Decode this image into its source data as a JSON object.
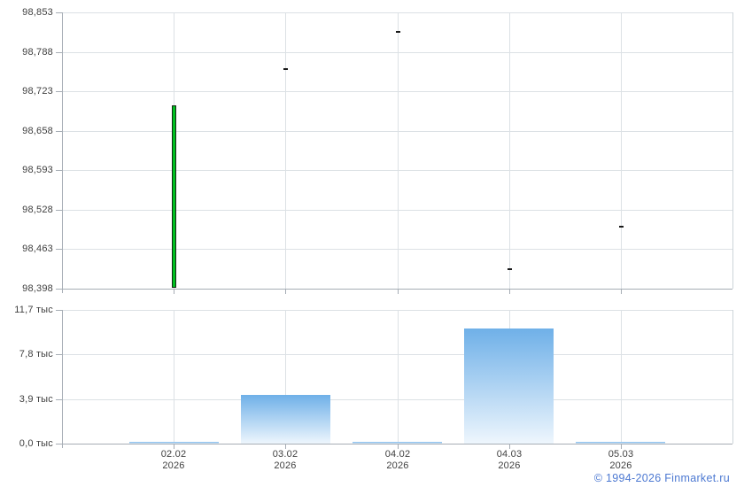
{
  "footer": {
    "copyright": "© 1994-2026 Finmarket.ru"
  },
  "colors": {
    "grid": "#dce1e5",
    "border": "#ccd4d9",
    "axis": "#a6adb5",
    "label_text": "#3f3f3f",
    "candle_up_fill": "#00c020",
    "candle_border": "#142814",
    "doji": "#1a1a1a",
    "bar_gradient_top": "#6fb0e8",
    "bar_gradient_bottom": "#eef6fd",
    "footer_link": "#4d79d2"
  },
  "x_axis": {
    "categories": [
      "02.02",
      "03.02",
      "04.02",
      "04.03",
      "05.03"
    ],
    "year_label": "2026"
  },
  "chart_data": [
    {
      "type": "candlestick",
      "panel": "price",
      "title": "",
      "x": [
        "02.02.2026",
        "03.02.2026",
        "04.02.2026",
        "04.03.2026",
        "05.03.2026"
      ],
      "candles": [
        {
          "open": 98400,
          "high": 98700,
          "low": 98400,
          "close": 98700,
          "direction": "up"
        },
        {
          "open": 98760,
          "high": 98760,
          "low": 98760,
          "close": 98760,
          "direction": "flat"
        },
        {
          "open": 98821,
          "high": 98821,
          "low": 98821,
          "close": 98821,
          "direction": "flat"
        },
        {
          "open": 98430,
          "high": 98430,
          "low": 98430,
          "close": 98430,
          "direction": "flat"
        },
        {
          "open": 98500,
          "high": 98500,
          "low": 98500,
          "close": 98500,
          "direction": "flat"
        }
      ],
      "ylim": [
        98398,
        98853
      ],
      "yticks": [
        {
          "value": 98853,
          "label": "98,853"
        },
        {
          "value": 98788,
          "label": "98,788"
        },
        {
          "value": 98723,
          "label": "98,723"
        },
        {
          "value": 98658,
          "label": "98,658"
        },
        {
          "value": 98593,
          "label": "98,593"
        },
        {
          "value": 98528,
          "label": "98,528"
        },
        {
          "value": 98463,
          "label": "98,463"
        },
        {
          "value": 98398,
          "label": "98,398"
        }
      ],
      "grid": true,
      "legend": false
    },
    {
      "type": "bar",
      "panel": "volume",
      "title": "",
      "x": [
        "02.02.2026",
        "03.02.2026",
        "04.02.2026",
        "04.03.2026",
        "05.03.2026"
      ],
      "values": [
        150,
        4300,
        150,
        10100,
        150
      ],
      "ylim": [
        0,
        11700
      ],
      "yticks": [
        {
          "value": 11700,
          "label": "11,7 тыс"
        },
        {
          "value": 7800,
          "label": "7,8 тыс"
        },
        {
          "value": 3900,
          "label": "3,9 тыс"
        },
        {
          "value": 0,
          "label": "0,0 тыс"
        }
      ],
      "grid": true,
      "legend": false
    }
  ]
}
